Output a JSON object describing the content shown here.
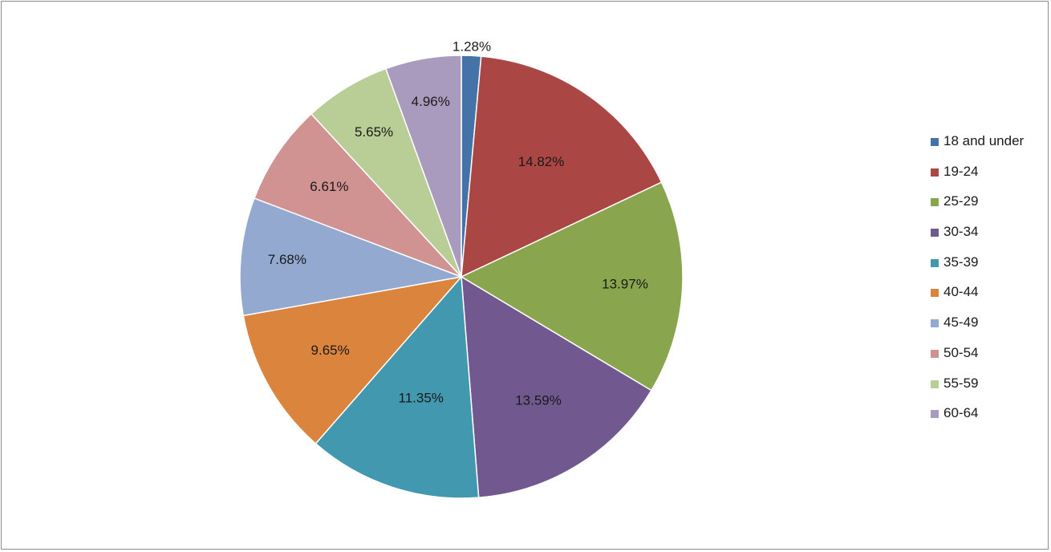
{
  "chart_data": {
    "type": "pie",
    "categories": [
      "18 and under",
      "19-24",
      "25-29",
      "30-34",
      "35-39",
      "40-44",
      "45-49",
      "50-54",
      "55-59",
      "60-64"
    ],
    "values": [
      1.28,
      14.82,
      13.97,
      13.59,
      11.35,
      9.65,
      7.68,
      6.61,
      5.65,
      4.96
    ],
    "data_labels": [
      "1.28%",
      "14.82%",
      "13.97%",
      "13.59%",
      "11.35%",
      "9.65%",
      "7.68%",
      "6.61%",
      "5.65%",
      "4.96%"
    ],
    "colors": [
      "#4572A7",
      "#AA4643",
      "#89A54E",
      "#71588F",
      "#4198AF",
      "#DB843D",
      "#93A9CF",
      "#D19392",
      "#B9CD96",
      "#A99BBD"
    ],
    "start_angle": "12 o'clock, clockwise",
    "legend_position": "right"
  }
}
